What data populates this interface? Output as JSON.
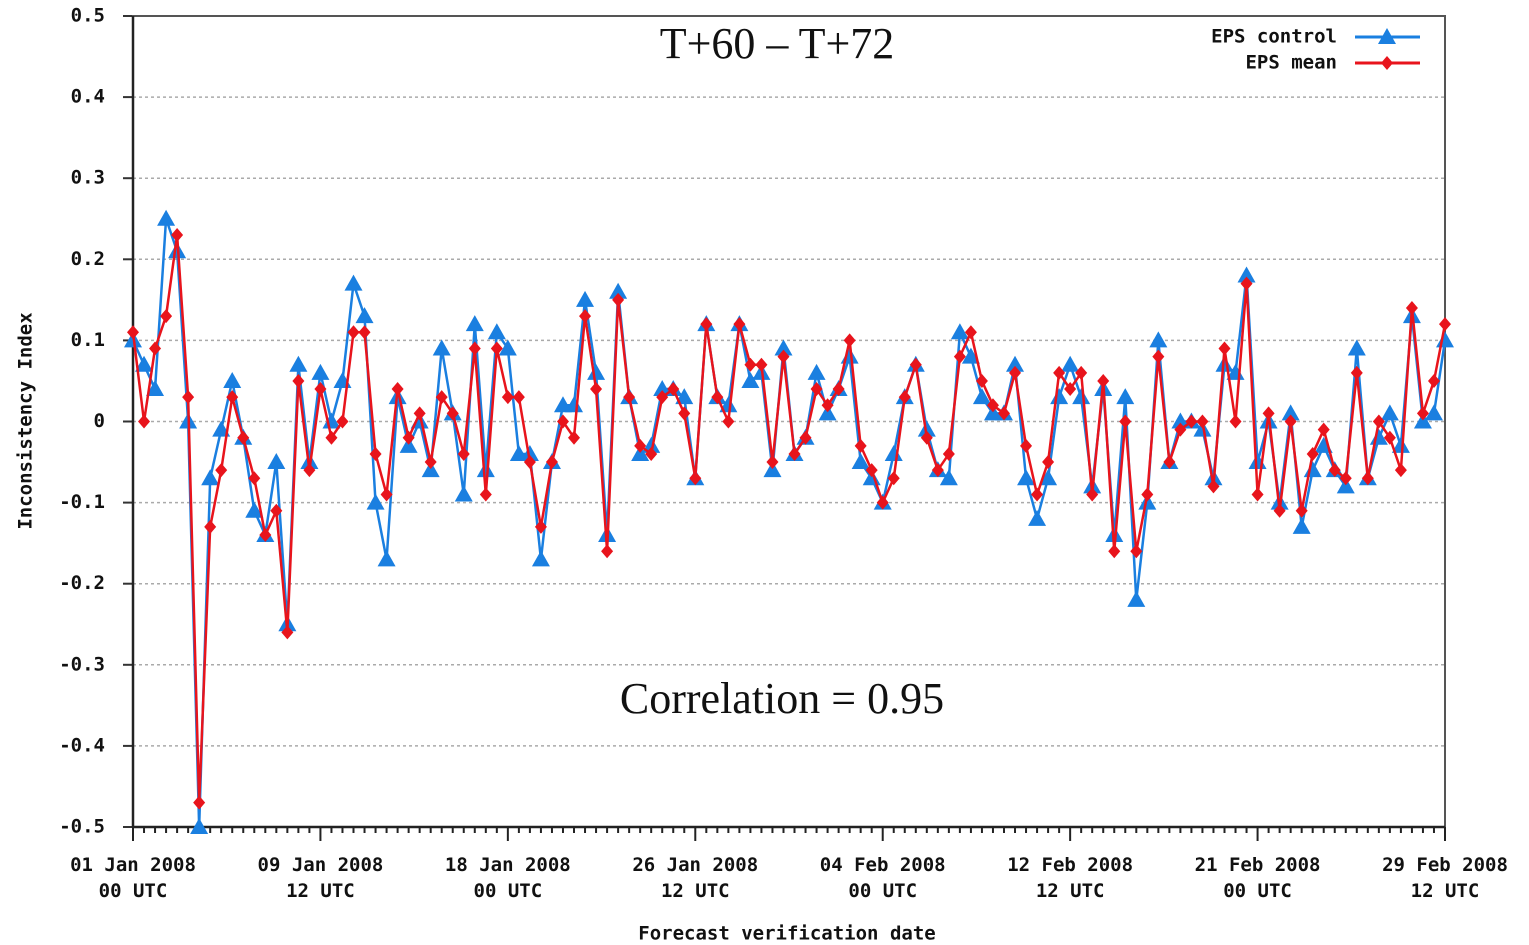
{
  "chart_data": {
    "type": "line",
    "annotations": [
      "T+60 – T+72",
      "Correlation = 0.95"
    ],
    "xlabel": "Forecast verification date",
    "ylabel": "Inconsistency Index",
    "categories": [
      "01 Jan 2008\n00 UTC",
      null,
      null,
      null,
      null,
      null,
      null,
      null,
      null,
      null,
      null,
      null,
      null,
      null,
      null,
      null,
      null,
      "09 Jan 2008\n12 UTC",
      null,
      null,
      null,
      null,
      null,
      null,
      null,
      null,
      null,
      null,
      null,
      null,
      null,
      null,
      null,
      null,
      "18 Jan 2008\n00 UTC",
      null,
      null,
      null,
      null,
      null,
      null,
      null,
      null,
      null,
      null,
      null,
      null,
      null,
      null,
      null,
      null,
      "26 Jan 2008\n12 UTC",
      null,
      null,
      null,
      null,
      null,
      null,
      null,
      null,
      null,
      null,
      null,
      null,
      null,
      null,
      null,
      null,
      "04 Feb 2008\n00 UTC",
      null,
      null,
      null,
      null,
      null,
      null,
      null,
      null,
      null,
      null,
      null,
      null,
      null,
      null,
      null,
      null,
      "12 Feb 2008\n12 UTC",
      null,
      null,
      null,
      null,
      null,
      null,
      null,
      null,
      null,
      null,
      null,
      null,
      null,
      null,
      null,
      null,
      "21 Feb 2008\n00 UTC",
      null,
      null,
      null,
      null,
      null,
      null,
      null,
      null,
      null,
      null,
      null,
      null,
      null,
      null,
      null,
      null,
      "29 Feb 2008\n12 UTC"
    ],
    "series": [
      {
        "name": "EPS control",
        "color": "#1a7fe0",
        "marker": "triangle",
        "values": [
          0.1,
          0.07,
          0.04,
          0.25,
          0.21,
          0.0,
          -0.5,
          -0.07,
          -0.01,
          0.05,
          -0.02,
          -0.11,
          -0.14,
          -0.05,
          -0.25,
          0.07,
          -0.05,
          0.06,
          0.0,
          0.05,
          0.17,
          0.13,
          -0.1,
          -0.17,
          0.03,
          -0.03,
          0.0,
          -0.06,
          0.09,
          0.01,
          -0.09,
          0.12,
          -0.06,
          0.11,
          0.09,
          -0.04,
          -0.04,
          -0.17,
          -0.05,
          0.02,
          0.02,
          0.15,
          0.06,
          -0.14,
          0.16,
          0.03,
          -0.04,
          -0.03,
          0.04,
          0.04,
          0.03,
          -0.07,
          0.12,
          0.03,
          0.02,
          0.12,
          0.05,
          0.06,
          -0.06,
          0.09,
          -0.04,
          -0.02,
          0.06,
          0.01,
          0.04,
          0.08,
          -0.05,
          -0.07,
          -0.1,
          -0.04,
          0.03,
          0.07,
          -0.01,
          -0.06,
          -0.07,
          0.11,
          0.08,
          0.03,
          0.01,
          0.01,
          0.07,
          -0.07,
          -0.12,
          -0.07,
          0.03,
          0.07,
          0.03,
          -0.08,
          0.04,
          -0.14,
          0.03,
          -0.22,
          -0.1,
          0.1,
          -0.05,
          0.0,
          0.0,
          -0.01,
          -0.07,
          0.07,
          0.06,
          0.18,
          -0.05,
          0.0,
          -0.1,
          0.01,
          -0.13,
          -0.06,
          -0.03,
          -0.06,
          -0.08,
          0.09,
          -0.07,
          -0.02,
          0.01,
          -0.03,
          0.13,
          0.0,
          0.01,
          0.1
        ]
      },
      {
        "name": "EPS mean",
        "color": "#e8141c",
        "marker": "diamond",
        "values": [
          0.11,
          0.0,
          0.09,
          0.13,
          0.23,
          0.03,
          -0.47,
          -0.13,
          -0.06,
          0.03,
          -0.02,
          -0.07,
          -0.14,
          -0.11,
          -0.26,
          0.05,
          -0.06,
          0.04,
          -0.02,
          0.0,
          0.11,
          0.11,
          -0.04,
          -0.09,
          0.04,
          -0.02,
          0.01,
          -0.05,
          0.03,
          0.01,
          -0.04,
          0.09,
          -0.09,
          0.09,
          0.03,
          0.03,
          -0.05,
          -0.13,
          -0.05,
          0.0,
          -0.02,
          0.13,
          0.04,
          -0.16,
          0.15,
          0.03,
          -0.03,
          -0.04,
          0.03,
          0.04,
          0.01,
          -0.07,
          0.12,
          0.03,
          0.0,
          0.12,
          0.07,
          0.07,
          -0.05,
          0.08,
          -0.04,
          -0.02,
          0.04,
          0.02,
          0.04,
          0.1,
          -0.03,
          -0.06,
          -0.1,
          -0.07,
          0.03,
          0.07,
          -0.02,
          -0.06,
          -0.04,
          0.08,
          0.11,
          0.05,
          0.02,
          0.01,
          0.06,
          -0.03,
          -0.09,
          -0.05,
          0.06,
          0.04,
          0.06,
          -0.09,
          0.05,
          -0.16,
          0.0,
          -0.16,
          -0.09,
          0.08,
          -0.05,
          -0.01,
          0.0,
          0.0,
          -0.08,
          0.09,
          0.0,
          0.17,
          -0.09,
          0.01,
          -0.11,
          0.0,
          -0.11,
          -0.04,
          -0.01,
          -0.06,
          -0.07,
          0.06,
          -0.07,
          0.0,
          -0.02,
          -0.06,
          0.14,
          0.01,
          0.05,
          0.12
        ]
      }
    ],
    "ylim": [
      -0.5,
      0.5
    ],
    "yticks": [
      0.5,
      0.4,
      0.3,
      0.2,
      0.1,
      0,
      -0.1,
      -0.2,
      -0.3,
      -0.4,
      -0.5
    ],
    "grid": true,
    "legend": "top-right"
  }
}
